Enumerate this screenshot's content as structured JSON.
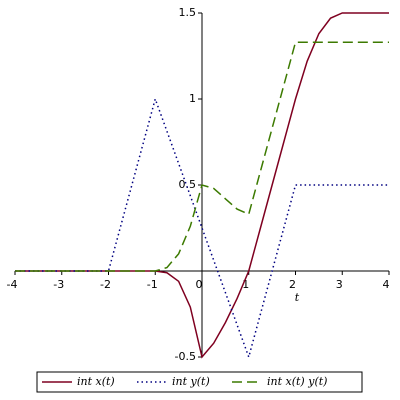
{
  "chart_data": {
    "type": "line",
    "x_label": "t",
    "x": [
      -4,
      -3.75,
      -3.5,
      -3.25,
      -3,
      -2.75,
      -2.5,
      -2.25,
      -2,
      -1.75,
      -1.5,
      -1.25,
      -1,
      -0.75,
      -0.5,
      -0.25,
      0,
      0.25,
      0.5,
      0.75,
      1,
      1.25,
      1.5,
      1.75,
      2,
      2.25,
      2.5,
      2.75,
      3,
      3.25,
      3.5,
      3.75,
      4
    ],
    "series": [
      {
        "name": "int x(t)",
        "color": "#7f0020",
        "style": "solid",
        "values": [
          0,
          0,
          0,
          0,
          0,
          0,
          0,
          0,
          0,
          0,
          0,
          0,
          0,
          -0.01,
          -0.06,
          -0.21,
          -0.5,
          -0.42,
          -0.3,
          -0.16,
          0,
          0.25,
          0.5,
          0.75,
          1,
          1.22,
          1.38,
          1.47,
          1.5,
          1.5,
          1.5,
          1.5,
          1.5
        ]
      },
      {
        "name": "int y(t)",
        "color": "#000080",
        "style": "dotted",
        "values": [
          0,
          0,
          0,
          0,
          0,
          0,
          0,
          0,
          0,
          0.25,
          0.5,
          0.75,
          1,
          0.8125,
          0.625,
          0.4375,
          0.25,
          0.0625,
          -0.125,
          -0.3125,
          -0.5,
          -0.25,
          0,
          0.25,
          0.5,
          0.5,
          0.5,
          0.5,
          0.5,
          0.5,
          0.5,
          0.5,
          0.5
        ]
      },
      {
        "name": "int x(t) y(t)",
        "color": "#3c7a00",
        "style": "dashed",
        "values": [
          0,
          0,
          0,
          0,
          0,
          0,
          0,
          0,
          0,
          0,
          0,
          0,
          0,
          0.02,
          0.1,
          0.26,
          0.5,
          0.48,
          0.42,
          0.36,
          0.33,
          0.58,
          0.83,
          1.08,
          1.33,
          1.33,
          1.33,
          1.33,
          1.33,
          1.33,
          1.33,
          1.33,
          1.33
        ]
      }
    ],
    "xlim": [
      -4,
      4
    ],
    "ylim": [
      -0.5,
      1.5
    ],
    "xticks": [
      -4,
      -3,
      -2,
      -1,
      0,
      1,
      2,
      3,
      4
    ],
    "yticks": [
      -0.5,
      0.5,
      1,
      1.5
    ],
    "legend": "bottom"
  }
}
